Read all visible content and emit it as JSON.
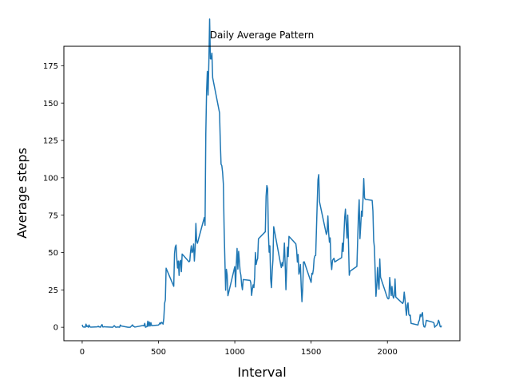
{
  "chart_data": {
    "type": "line",
    "title": "Daily Average Pattern",
    "xlabel": "Interval",
    "ylabel": "Average steps",
    "xlim": [
      -120,
      2475
    ],
    "ylim": [
      -9,
      188
    ],
    "grid": false,
    "line_color": "#1f77b4",
    "xticks": [
      0,
      500,
      1000,
      1500,
      2000
    ],
    "yticks": [
      0,
      25,
      50,
      75,
      100,
      125,
      150,
      175
    ],
    "series": [
      {
        "points": [
          [
            0,
            1.7
          ],
          [
            5,
            0.3
          ],
          [
            10,
            0.1
          ],
          [
            15,
            0.2
          ],
          [
            20,
            0.0
          ],
          [
            25,
            2.1
          ],
          [
            30,
            0.5
          ],
          [
            35,
            0.9
          ],
          [
            40,
            0.0
          ],
          [
            45,
            1.5
          ],
          [
            50,
            0.3
          ],
          [
            55,
            0.1
          ],
          [
            100,
            0.3
          ],
          [
            105,
            0.7
          ],
          [
            110,
            0.2
          ],
          [
            115,
            0.3
          ],
          [
            120,
            0.0
          ],
          [
            125,
            1.1
          ],
          [
            130,
            1.8
          ],
          [
            135,
            0.2
          ],
          [
            140,
            0.2
          ],
          [
            145,
            0.4
          ],
          [
            150,
            0.3
          ],
          [
            200,
            0.0
          ],
          [
            210,
            1.1
          ],
          [
            220,
            0.0
          ],
          [
            235,
            0.2
          ],
          [
            245,
            0.0
          ],
          [
            250,
            1.5
          ],
          [
            255,
            0.9
          ],
          [
            300,
            0.0
          ],
          [
            315,
            0.0
          ],
          [
            330,
            1.6
          ],
          [
            335,
            0.6
          ],
          [
            340,
            0.5
          ],
          [
            345,
            0.1
          ],
          [
            400,
            1.2
          ],
          [
            405,
            0.9
          ],
          [
            410,
            2.6
          ],
          [
            415,
            0.0
          ],
          [
            420,
            0.3
          ],
          [
            425,
            0.4
          ],
          [
            430,
            4.1
          ],
          [
            435,
            0.7
          ],
          [
            440,
            3.5
          ],
          [
            445,
            0.8
          ],
          [
            450,
            3.1
          ],
          [
            455,
            1.1
          ],
          [
            500,
            1.5
          ],
          [
            505,
            2.1
          ],
          [
            510,
            3.0
          ],
          [
            515,
            2.2
          ],
          [
            520,
            3.3
          ],
          [
            525,
            3.0
          ],
          [
            530,
            2.1
          ],
          [
            535,
            6.1
          ],
          [
            540,
            16.0
          ],
          [
            545,
            18.3
          ],
          [
            550,
            39.5
          ],
          [
            600,
            27.4
          ],
          [
            605,
            49.3
          ],
          [
            610,
            53.8
          ],
          [
            615,
            55.0
          ],
          [
            620,
            46.0
          ],
          [
            625,
            39.6
          ],
          [
            630,
            44.3
          ],
          [
            635,
            34.7
          ],
          [
            640,
            44.0
          ],
          [
            645,
            44.8
          ],
          [
            650,
            37.2
          ],
          [
            655,
            49.0
          ],
          [
            700,
            43.8
          ],
          [
            705,
            44.4
          ],
          [
            710,
            50.5
          ],
          [
            715,
            54.5
          ],
          [
            720,
            49.9
          ],
          [
            725,
            50.9
          ],
          [
            730,
            55.7
          ],
          [
            735,
            44.3
          ],
          [
            740,
            52.3
          ],
          [
            745,
            69.5
          ],
          [
            750,
            57.8
          ],
          [
            755,
            56.2
          ],
          [
            800,
            73.4
          ],
          [
            805,
            68.2
          ],
          [
            810,
            129.4
          ],
          [
            815,
            157.5
          ],
          [
            820,
            171.2
          ],
          [
            825,
            155.4
          ],
          [
            830,
            177.3
          ],
          [
            835,
            206.2
          ],
          [
            840,
            179.6
          ],
          [
            845,
            179.6
          ],
          [
            850,
            183.4
          ],
          [
            855,
            167.0
          ],
          [
            900,
            143.5
          ],
          [
            905,
            124.0
          ],
          [
            910,
            109.1
          ],
          [
            915,
            108.1
          ],
          [
            920,
            103.7
          ],
          [
            925,
            95.9
          ],
          [
            930,
            66.2
          ],
          [
            935,
            45.2
          ],
          [
            940,
            24.8
          ],
          [
            945,
            38.8
          ],
          [
            950,
            34.98
          ],
          [
            955,
            21.1
          ],
          [
            1000,
            40.6
          ],
          [
            1005,
            26.98
          ],
          [
            1010,
            42.4
          ],
          [
            1015,
            52.7
          ],
          [
            1020,
            38.9
          ],
          [
            1025,
            50.8
          ],
          [
            1030,
            44.3
          ],
          [
            1035,
            37.4
          ],
          [
            1040,
            34.7
          ],
          [
            1045,
            28.3
          ],
          [
            1050,
            25.1
          ],
          [
            1055,
            31.9
          ],
          [
            1100,
            31.4
          ],
          [
            1105,
            29.7
          ],
          [
            1110,
            21.3
          ],
          [
            1115,
            25.5
          ],
          [
            1120,
            28.4
          ],
          [
            1125,
            26.5
          ],
          [
            1130,
            33.4
          ],
          [
            1135,
            49.98
          ],
          [
            1140,
            42.0
          ],
          [
            1145,
            44.6
          ],
          [
            1150,
            46.0
          ],
          [
            1155,
            59.2
          ],
          [
            1200,
            63.9
          ],
          [
            1205,
            87.7
          ],
          [
            1210,
            94.8
          ],
          [
            1215,
            92.8
          ],
          [
            1220,
            63.4
          ],
          [
            1225,
            50.2
          ],
          [
            1230,
            54.5
          ],
          [
            1235,
            32.4
          ],
          [
            1240,
            26.5
          ],
          [
            1245,
            37.7
          ],
          [
            1250,
            45.1
          ],
          [
            1255,
            67.3
          ],
          [
            1300,
            42.3
          ],
          [
            1305,
            39.9
          ],
          [
            1310,
            43.3
          ],
          [
            1315,
            40.98
          ],
          [
            1320,
            46.2
          ],
          [
            1325,
            56.4
          ],
          [
            1330,
            42.8
          ],
          [
            1335,
            25.1
          ],
          [
            1340,
            39.98
          ],
          [
            1345,
            53.5
          ],
          [
            1350,
            47.3
          ],
          [
            1355,
            60.8
          ],
          [
            1400,
            55.8
          ],
          [
            1405,
            51.96
          ],
          [
            1410,
            43.6
          ],
          [
            1415,
            48.7
          ],
          [
            1420,
            35.5
          ],
          [
            1425,
            37.6
          ],
          [
            1430,
            42.0
          ],
          [
            1435,
            27.5
          ],
          [
            1440,
            17.1
          ],
          [
            1445,
            26.1
          ],
          [
            1450,
            43.6
          ],
          [
            1455,
            43.8
          ],
          [
            1500,
            30.0
          ],
          [
            1505,
            36.1
          ],
          [
            1510,
            35.5
          ],
          [
            1515,
            38.8
          ],
          [
            1520,
            45.96
          ],
          [
            1525,
            47.8
          ],
          [
            1530,
            48.1
          ],
          [
            1535,
            65.3
          ],
          [
            1540,
            82.9
          ],
          [
            1545,
            98.7
          ],
          [
            1550,
            102.1
          ],
          [
            1555,
            84.0
          ],
          [
            1600,
            62.1
          ],
          [
            1605,
            64.1
          ],
          [
            1610,
            74.5
          ],
          [
            1615,
            63.2
          ],
          [
            1620,
            56.9
          ],
          [
            1625,
            59.8
          ],
          [
            1630,
            43.9
          ],
          [
            1635,
            38.6
          ],
          [
            1640,
            44.7
          ],
          [
            1645,
            45.5
          ],
          [
            1650,
            46.2
          ],
          [
            1655,
            43.7
          ],
          [
            1700,
            46.6
          ],
          [
            1705,
            56.3
          ],
          [
            1710,
            50.7
          ],
          [
            1715,
            61.2
          ],
          [
            1720,
            73.4
          ],
          [
            1725,
            79.0
          ],
          [
            1730,
            68.9
          ],
          [
            1735,
            59.7
          ],
          [
            1740,
            75.1
          ],
          [
            1745,
            56.5
          ],
          [
            1750,
            34.8
          ],
          [
            1755,
            37.5
          ],
          [
            1800,
            40.7
          ],
          [
            1805,
            58.0
          ],
          [
            1810,
            74.7
          ],
          [
            1815,
            85.3
          ],
          [
            1820,
            59.3
          ],
          [
            1825,
            67.8
          ],
          [
            1830,
            77.7
          ],
          [
            1835,
            74.2
          ],
          [
            1840,
            85.3
          ],
          [
            1845,
            99.5
          ],
          [
            1850,
            86.6
          ],
          [
            1855,
            85.6
          ],
          [
            1900,
            84.9
          ],
          [
            1905,
            77.8
          ],
          [
            1910,
            58.0
          ],
          [
            1915,
            53.4
          ],
          [
            1920,
            36.3
          ],
          [
            1925,
            20.7
          ],
          [
            1930,
            27.4
          ],
          [
            1935,
            40.0
          ],
          [
            1940,
            30.2
          ],
          [
            1945,
            25.5
          ],
          [
            1950,
            45.7
          ],
          [
            1955,
            33.5
          ],
          [
            2000,
            19.6
          ],
          [
            2005,
            19.0
          ],
          [
            2010,
            19.3
          ],
          [
            2015,
            33.3
          ],
          [
            2020,
            26.8
          ],
          [
            2025,
            21.2
          ],
          [
            2030,
            27.3
          ],
          [
            2035,
            21.3
          ],
          [
            2040,
            19.5
          ],
          [
            2045,
            21.3
          ],
          [
            2050,
            32.3
          ],
          [
            2055,
            20.2
          ],
          [
            2100,
            15.9
          ],
          [
            2105,
            17.2
          ],
          [
            2110,
            23.5
          ],
          [
            2115,
            19.2
          ],
          [
            2120,
            12.5
          ],
          [
            2125,
            8.0
          ],
          [
            2130,
            14.7
          ],
          [
            2135,
            16.3
          ],
          [
            2140,
            8.7
          ],
          [
            2145,
            7.8
          ],
          [
            2150,
            8.1
          ],
          [
            2155,
            2.6
          ],
          [
            2200,
            1.5
          ],
          [
            2205,
            3.7
          ],
          [
            2210,
            4.8
          ],
          [
            2215,
            8.5
          ],
          [
            2220,
            7.1
          ],
          [
            2225,
            8.7
          ],
          [
            2230,
            9.8
          ],
          [
            2235,
            2.2
          ],
          [
            2240,
            0.3
          ],
          [
            2245,
            0.1
          ],
          [
            2250,
            1.6
          ],
          [
            2255,
            4.6
          ],
          [
            2300,
            3.3
          ],
          [
            2305,
            2.8
          ],
          [
            2310,
            0.0
          ],
          [
            2315,
            0.8
          ],
          [
            2320,
            0.96
          ],
          [
            2325,
            1.6
          ],
          [
            2330,
            2.6
          ],
          [
            2335,
            4.7
          ],
          [
            2340,
            3.3
          ],
          [
            2345,
            0.6
          ],
          [
            2350,
            0.2
          ],
          [
            2355,
            1.1
          ]
        ]
      }
    ]
  }
}
